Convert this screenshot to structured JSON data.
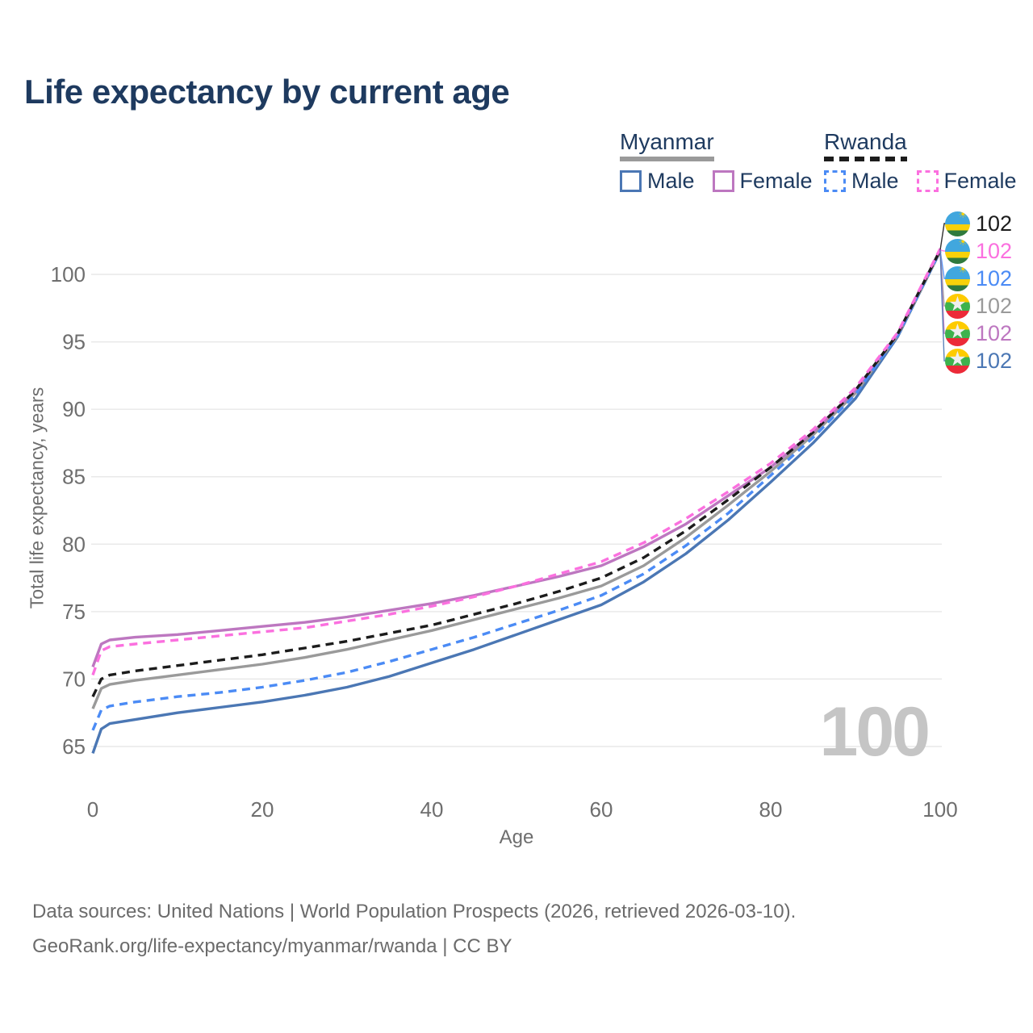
{
  "title": "Life expectancy by current age",
  "colors": {
    "title_text": "#1e3a5f",
    "legend_text": "#1e3a5f",
    "axis_text": "#6e6e6e",
    "grid": "#e9e9e9",
    "watermark": "#c5c5c5",
    "footer_text": "#6b6b6b"
  },
  "legend": {
    "groups": [
      {
        "label": "Myanmar",
        "line_style": "solid",
        "swatch_color": "#9a9a9a",
        "items": [
          {
            "label": "Male",
            "color": "#4b77b4"
          },
          {
            "label": "Female",
            "color": "#bd77c0"
          }
        ]
      },
      {
        "label": "Rwanda",
        "line_style": "dashed",
        "swatch_color": "#1c1c1c",
        "items": [
          {
            "label": "Male",
            "color": "#4b8bf5"
          },
          {
            "label": "Female",
            "color": "#fb70df"
          }
        ]
      }
    ]
  },
  "watermark_age": "100",
  "footer": {
    "line1": "Data sources: United Nations | World Population Prospects (2026, retrieved 2026-03-10).",
    "line2": "GeoRank.org/life-expectancy/myanmar/rwanda | CC BY"
  },
  "chart_data": {
    "type": "line",
    "title": "Life expectancy by current age",
    "xlabel": "Age",
    "ylabel": "Total life expectancy, years",
    "x": [
      0,
      1,
      2,
      5,
      10,
      15,
      20,
      25,
      30,
      35,
      40,
      45,
      50,
      55,
      60,
      65,
      70,
      75,
      80,
      85,
      90,
      95,
      100
    ],
    "x_ticks": [
      "0",
      "20",
      "40",
      "60",
      "80",
      "100"
    ],
    "y_ticks": [
      "65",
      "70",
      "75",
      "80",
      "85",
      "90",
      "95",
      "100"
    ],
    "xlim": [
      0,
      100
    ],
    "ylim": [
      64,
      102.5
    ],
    "grid": "horizontal",
    "legend_position": "top-right",
    "series": [
      {
        "name": "Myanmar Male",
        "country": "Myanmar",
        "sex": "Male",
        "color": "#4b77b4",
        "dashed": false,
        "values": [
          64.5,
          66.3,
          66.7,
          67.0,
          67.5,
          67.9,
          68.3,
          68.8,
          69.4,
          70.2,
          71.2,
          72.2,
          73.3,
          74.4,
          75.5,
          77.2,
          79.3,
          81.8,
          84.6,
          87.5,
          90.8,
          95.4,
          101.7
        ]
      },
      {
        "name": "Myanmar Both sexes",
        "country": "Myanmar",
        "sex": "Both",
        "color": "#9a9a9a",
        "dashed": false,
        "values": [
          67.8,
          69.3,
          69.6,
          69.9,
          70.3,
          70.7,
          71.1,
          71.6,
          72.2,
          72.9,
          73.6,
          74.4,
          75.2,
          76.0,
          76.9,
          78.4,
          80.5,
          82.9,
          85.4,
          88.1,
          91.2,
          95.5,
          101.7
        ]
      },
      {
        "name": "Myanmar Female",
        "country": "Myanmar",
        "sex": "Female",
        "color": "#bd77c0",
        "dashed": false,
        "values": [
          70.9,
          72.6,
          72.9,
          73.1,
          73.3,
          73.6,
          73.9,
          74.2,
          74.6,
          75.1,
          75.6,
          76.2,
          76.9,
          77.6,
          78.4,
          79.8,
          81.5,
          83.6,
          85.7,
          88.3,
          91.4,
          95.6,
          101.8
        ]
      },
      {
        "name": "Rwanda Male",
        "country": "Rwanda",
        "sex": "Male",
        "color": "#4b8bf5",
        "dashed": true,
        "values": [
          66.2,
          67.7,
          68.0,
          68.3,
          68.7,
          69.0,
          69.4,
          69.9,
          70.5,
          71.3,
          72.2,
          73.1,
          74.1,
          75.1,
          76.2,
          77.8,
          79.9,
          82.3,
          85.1,
          87.9,
          91.1,
          95.5,
          101.75
        ]
      },
      {
        "name": "Rwanda Both sexes",
        "country": "Rwanda",
        "sex": "Both",
        "color": "#1c1c1c",
        "dashed": true,
        "values": [
          68.7,
          70.0,
          70.3,
          70.6,
          71.0,
          71.4,
          71.8,
          72.3,
          72.8,
          73.4,
          74.0,
          74.8,
          75.6,
          76.5,
          77.5,
          79.0,
          81.0,
          83.3,
          85.7,
          88.3,
          91.4,
          95.6,
          101.8
        ]
      },
      {
        "name": "Rwanda Female",
        "country": "Rwanda",
        "sex": "Female",
        "color": "#fb70df",
        "dashed": true,
        "values": [
          70.3,
          72.1,
          72.4,
          72.6,
          72.9,
          73.2,
          73.5,
          73.8,
          74.3,
          74.8,
          75.4,
          76.1,
          76.9,
          77.8,
          78.7,
          80.1,
          81.9,
          83.9,
          86.0,
          88.5,
          91.6,
          95.7,
          101.9
        ]
      }
    ],
    "end_labels": [
      {
        "flag": "rwanda",
        "series": "Rwanda Both sexes",
        "value": "102",
        "color": "#1c1c1c"
      },
      {
        "flag": "rwanda",
        "series": "Rwanda Female",
        "value": "102",
        "color": "#fb70df"
      },
      {
        "flag": "rwanda",
        "series": "Rwanda Male",
        "value": "102",
        "color": "#4b8bf5"
      },
      {
        "flag": "myanmar",
        "series": "Myanmar Both sexes",
        "value": "102",
        "color": "#9a9a9a"
      },
      {
        "flag": "myanmar",
        "series": "Myanmar Female",
        "value": "102",
        "color": "#bd77c0"
      },
      {
        "flag": "myanmar",
        "series": "Myanmar Male",
        "value": "102",
        "color": "#4b77b4"
      }
    ]
  }
}
